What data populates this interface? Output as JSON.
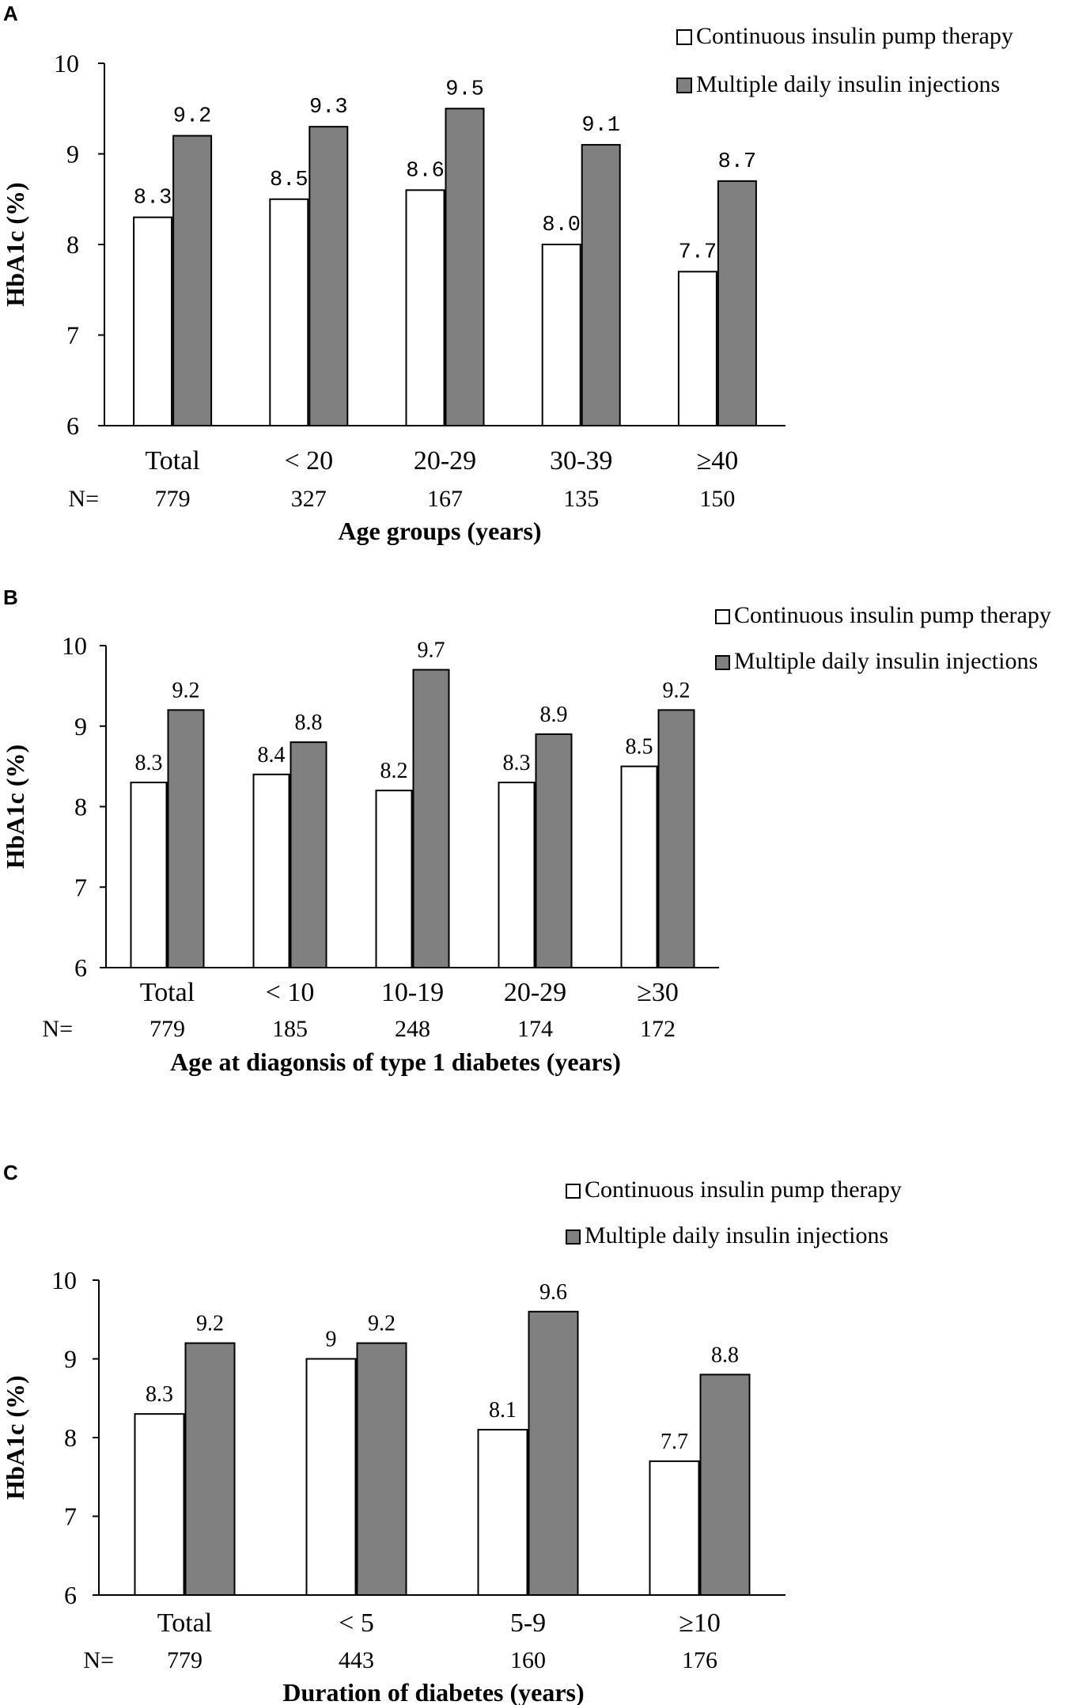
{
  "legend": {
    "cipt": "Continuous insulin pump therapy",
    "mdi": "Multiple daily insulin injections"
  },
  "colors": {
    "cipt": "#ffffff",
    "mdi": "#808080",
    "stroke": "#000000"
  },
  "chart_data": [
    {
      "type": "bar",
      "panel": "A",
      "ylabel": "HbA1c (%)",
      "xlabel": "Age groups (years)",
      "ylim": [
        6,
        10
      ],
      "yticks": [
        "6",
        "7",
        "8",
        "9",
        "10"
      ],
      "n_prefix": "N=",
      "categories": [
        "Total",
        "< 20",
        "20-29",
        "30-39",
        "≥40"
      ],
      "n": [
        "779",
        "327",
        "167",
        "135",
        "150"
      ],
      "series": [
        {
          "name": "Continuous insulin pump therapy",
          "values": [
            8.3,
            8.5,
            8.6,
            8.0,
            7.7
          ],
          "labels": [
            "8.3",
            "8.5",
            "8.6",
            "8.0",
            "7.7"
          ]
        },
        {
          "name": "Multiple daily insulin injections",
          "values": [
            9.2,
            9.3,
            9.5,
            9.1,
            8.7
          ],
          "labels": [
            "9.2",
            "9.3",
            "9.5",
            "9.1",
            "8.7"
          ]
        }
      ]
    },
    {
      "type": "bar",
      "panel": "B",
      "ylabel": "HbA1c (%)",
      "xlabel": "Age at diagonsis of type 1 diabetes (years)",
      "ylim": [
        6,
        10
      ],
      "yticks": [
        "6",
        "7",
        "8",
        "9",
        "10"
      ],
      "n_prefix": "N=",
      "categories": [
        "Total",
        "< 10",
        "10-19",
        "20-29",
        "≥30"
      ],
      "n": [
        "779",
        "185",
        "248",
        "174",
        "172"
      ],
      "series": [
        {
          "name": "Continuous insulin pump therapy",
          "values": [
            8.3,
            8.4,
            8.2,
            8.3,
            8.5
          ],
          "labels": [
            "8.3",
            "8.4",
            "8.2",
            "8.3",
            "8.5"
          ]
        },
        {
          "name": "Multiple daily insulin injections",
          "values": [
            9.2,
            8.8,
            9.7,
            8.9,
            9.2
          ],
          "labels": [
            "9.2",
            "8.8",
            "9.7",
            "8.9",
            "9.2"
          ]
        }
      ]
    },
    {
      "type": "bar",
      "panel": "C",
      "ylabel": "HbA1c (%)",
      "xlabel": "Duration of diabetes (years)",
      "ylim": [
        6,
        10
      ],
      "yticks": [
        "6",
        "7",
        "8",
        "9",
        "10"
      ],
      "n_prefix": "N=",
      "categories": [
        "Total",
        "< 5",
        "5-9",
        "≥10"
      ],
      "n": [
        "779",
        "443",
        "160",
        "176"
      ],
      "series": [
        {
          "name": "Continuous insulin pump therapy",
          "values": [
            8.3,
            9.0,
            8.1,
            7.7
          ],
          "labels": [
            "8.3",
            "9",
            "8.1",
            "7.7"
          ]
        },
        {
          "name": "Multiple daily insulin injections",
          "values": [
            9.2,
            9.2,
            9.6,
            8.8
          ],
          "labels": [
            "9.2",
            "9.2",
            "9.6",
            "8.8"
          ]
        }
      ]
    }
  ]
}
